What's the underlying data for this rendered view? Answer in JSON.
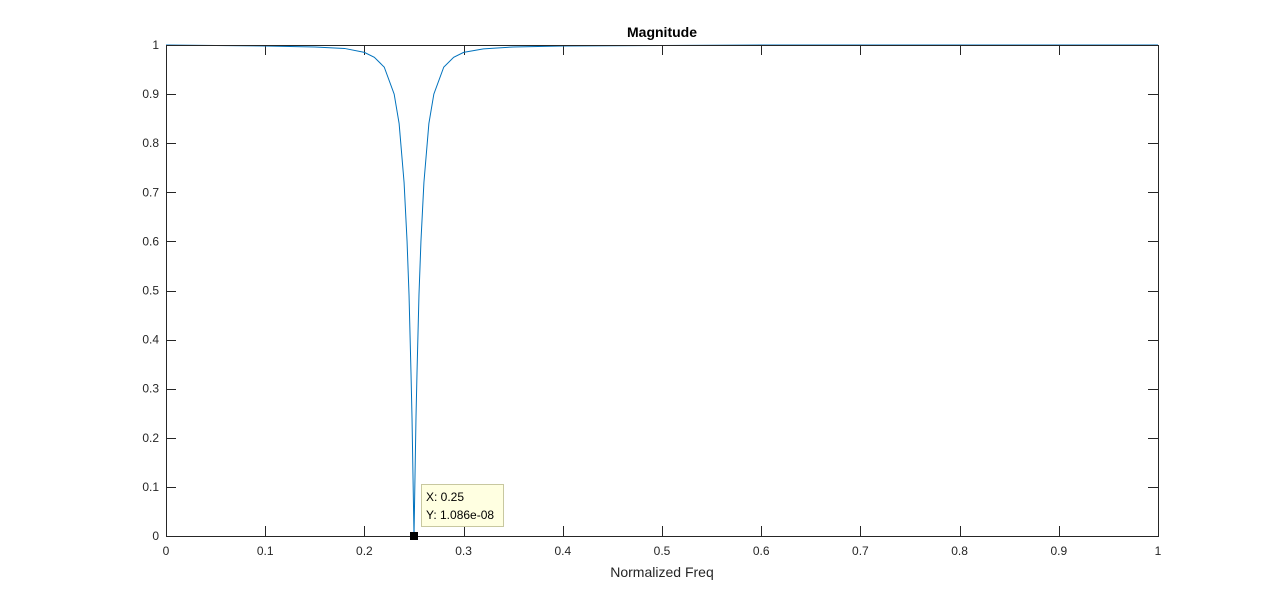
{
  "chart_data": {
    "type": "line",
    "title": "Magnitude",
    "xlabel": "Normalized Freq",
    "ylabel": "",
    "xlim": [
      0,
      1
    ],
    "ylim": [
      0,
      1
    ],
    "x_ticks": [
      "0",
      "0.1",
      "0.2",
      "0.3",
      "0.4",
      "0.5",
      "0.6",
      "0.7",
      "0.8",
      "0.9",
      "1"
    ],
    "y_ticks": [
      "0",
      "0.1",
      "0.2",
      "0.3",
      "0.4",
      "0.5",
      "0.6",
      "0.7",
      "0.8",
      "0.9",
      "1"
    ],
    "grid": false,
    "series": [
      {
        "color": "#0072bd",
        "x": [
          0,
          0.05,
          0.1,
          0.15,
          0.18,
          0.2,
          0.21,
          0.22,
          0.23,
          0.235,
          0.24,
          0.243,
          0.245,
          0.247,
          0.248,
          0.249,
          0.2495,
          0.25,
          0.2505,
          0.251,
          0.252,
          0.253,
          0.255,
          0.257,
          0.26,
          0.265,
          0.27,
          0.28,
          0.29,
          0.3,
          0.32,
          0.35,
          0.4,
          0.5,
          0.6,
          0.7,
          0.8,
          0.9,
          1
        ],
        "y": [
          1,
          0.999,
          0.998,
          0.996,
          0.993,
          0.985,
          0.975,
          0.955,
          0.9,
          0.84,
          0.72,
          0.6,
          0.49,
          0.33,
          0.24,
          0.12,
          0.06,
          1.086e-08,
          0.06,
          0.12,
          0.24,
          0.33,
          0.49,
          0.6,
          0.72,
          0.84,
          0.9,
          0.955,
          0.975,
          0.985,
          0.992,
          0.996,
          0.998,
          0.999,
          1,
          1,
          1,
          1,
          1
        ]
      }
    ],
    "datatip": {
      "x_text": "X: 0.25",
      "y_text": "Y: 1.086e-08",
      "x": 0.25,
      "y": 1.086e-08
    }
  }
}
